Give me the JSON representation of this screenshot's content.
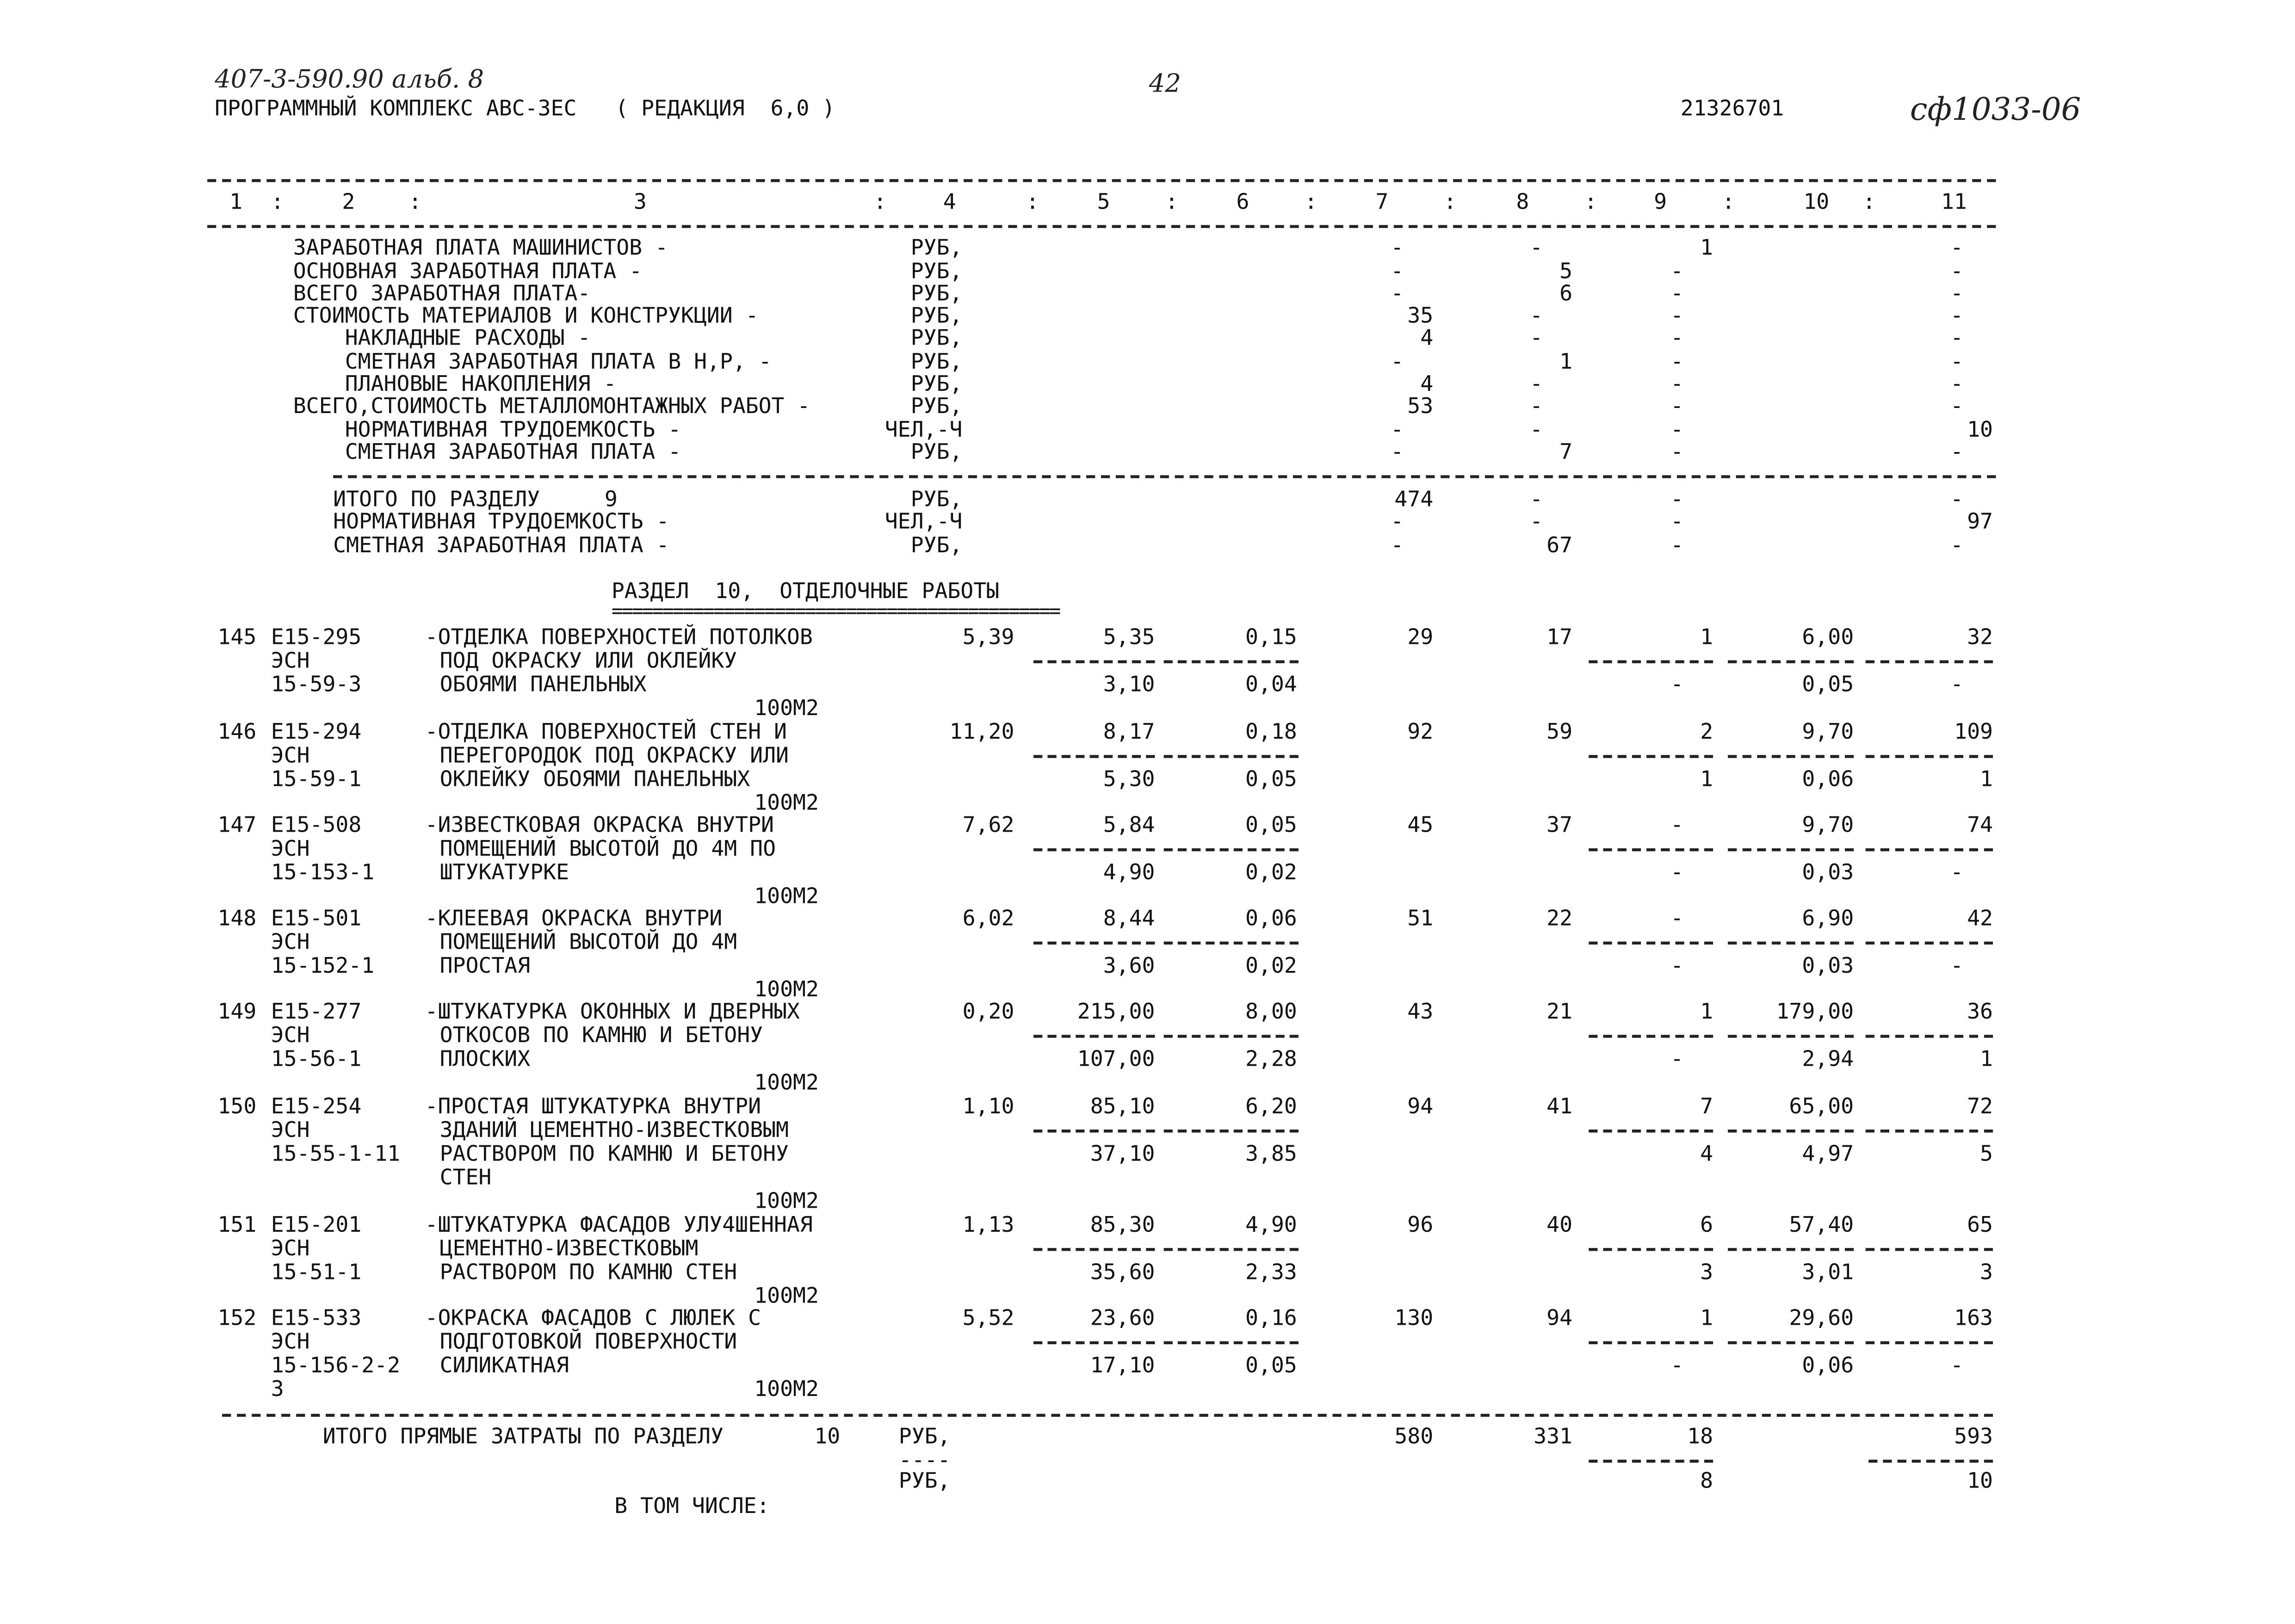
{
  "header": {
    "handwritten_ref": "407-3-590.90 альб. 8",
    "page_number": "42",
    "program": "ПРОГРАММНЫЙ КОМПЛЕКС АВС-3ЕС   ( РЕДАКЦИЯ  6,0 )",
    "code": "21326701",
    "handwritten_code": "сф1033-06"
  },
  "columns": {
    "labels": [
      "1",
      "2",
      "3",
      "4",
      "5",
      "6",
      "7",
      "8",
      "9",
      "10",
      "11"
    ],
    "separator": ":"
  },
  "summary_prev": {
    "rows": [
      {
        "label": "ЗАРАБОТНАЯ ПЛАТА МАШИНИСТОВ -",
        "indent": false,
        "unit": "РУБ,",
        "c7": "-",
        "c8": "-",
        "c9": "1",
        "c11": "-"
      },
      {
        "label": "ОСНОВНАЯ ЗАРАБОТНАЯ ПЛАТА -",
        "indent": false,
        "unit": "РУБ,",
        "c7": "-",
        "c8": "5",
        "c9": "-",
        "c11": "-"
      },
      {
        "label": "ВСЕГО ЗАРАБОТНАЯ ПЛАТА-",
        "indent": false,
        "unit": "РУБ,",
        "c7": "-",
        "c8": "6",
        "c9": "-",
        "c11": "-"
      },
      {
        "label": "СТОИМОСТЬ МАТЕРИАЛОВ И КОНСТРУКЦИИ -",
        "indent": false,
        "unit": "РУБ,",
        "c7": "35",
        "c8": "-",
        "c9": "-",
        "c11": "-"
      },
      {
        "label": "НАКЛАДНЫЕ РАСХОДЫ -",
        "indent": true,
        "unit": "РУБ,",
        "c7": "4",
        "c8": "-",
        "c9": "-",
        "c11": "-"
      },
      {
        "label": "СМЕТНАЯ ЗАРАБОТНАЯ ПЛАТА В Н,Р, -",
        "indent": true,
        "unit": "РУБ,",
        "c7": "-",
        "c8": "1",
        "c9": "-",
        "c11": "-"
      },
      {
        "label": "ПЛАНОВЫЕ НАКОПЛЕНИЯ -",
        "indent": true,
        "unit": "РУБ,",
        "c7": "4",
        "c8": "-",
        "c9": "-",
        "c11": "-"
      },
      {
        "label": "ВСЕГО,СТОИМОСТЬ МЕТАЛЛОМОНТАЖНЫХ РАБОТ -",
        "indent": false,
        "unit": "РУБ,",
        "c7": "53",
        "c8": "-",
        "c9": "-",
        "c11": "-"
      },
      {
        "label": "НОРМАТИВНАЯ ТРУДОЕМКОСТЬ -",
        "indent": true,
        "unit": "ЧЕЛ,-Ч",
        "c7": "-",
        "c8": "-",
        "c9": "-",
        "c11": "10"
      },
      {
        "label": "СМЕТНАЯ ЗАРАБОТНАЯ ПЛАТА -",
        "indent": true,
        "unit": "РУБ,",
        "c7": "-",
        "c8": "7",
        "c9": "-",
        "c11": "-"
      }
    ],
    "totals": [
      {
        "label": "ИТОГО ПО РАЗДЕЛУ     9",
        "unit": "РУБ,",
        "c7": "474",
        "c8": "-",
        "c9": "-",
        "c11": "-"
      },
      {
        "label": "НОРМАТИВНАЯ ТРУДОЕМКОСТЬ -",
        "unit": "ЧЕЛ,-Ч",
        "c7": "-",
        "c8": "-",
        "c9": "-",
        "c11": "97"
      },
      {
        "label": "СМЕТНАЯ ЗАРАБОТНАЯ ПЛАТА -",
        "unit": "РУБ,",
        "c7": "-",
        "c8": "67",
        "c9": "-",
        "c11": "-"
      }
    ]
  },
  "section": {
    "title": "РАЗДЕЛ  10,  ОТДЕЛОЧНЫЕ РАБОТЫ",
    "underline": "============================================",
    "items": [
      {
        "num": "145",
        "code": "Е15-295",
        "esn": "ЭСН",
        "sub": "15-59-3",
        "extra": "",
        "desc": [
          "-ОТДЕЛКА ПОВЕРХНОСТЕЙ ПОТОЛКОВ",
          "ПОД ОКРАСКУ ИЛИ ОКЛЕЙКУ",
          "ОБОЯМИ ПАНЕЛЬНЫХ"
        ],
        "unit": "100М2",
        "c4": "5,39",
        "c5": [
          "5,35",
          "3,10"
        ],
        "c6": [
          "0,15",
          "0,04"
        ],
        "c7": "29",
        "c8": "17",
        "c9": [
          "1",
          "-"
        ],
        "c10": [
          "6,00",
          "0,05"
        ],
        "c11": [
          "32",
          "-"
        ]
      },
      {
        "num": "146",
        "code": "Е15-294",
        "esn": "ЭСН",
        "sub": "15-59-1",
        "extra": "",
        "desc": [
          "-ОТДЕЛКА ПОВЕРХНОСТЕЙ СТЕН И",
          "ПЕРЕГОРОДОК ПОД ОКРАСКУ ИЛИ",
          "ОКЛЕЙКУ ОБОЯМИ ПАНЕЛЬНЫХ"
        ],
        "unit": "100М2",
        "c4": "11,20",
        "c5": [
          "8,17",
          "5,30"
        ],
        "c6": [
          "0,18",
          "0,05"
        ],
        "c7": "92",
        "c8": "59",
        "c9": [
          "2",
          "1"
        ],
        "c10": [
          "9,70",
          "0,06"
        ],
        "c11": [
          "109",
          "1"
        ]
      },
      {
        "num": "147",
        "code": "Е15-508",
        "esn": "ЭСН",
        "sub": "15-153-1",
        "extra": "",
        "desc": [
          "-ИЗВЕСТКОВАЯ ОКРАСКА ВНУТРИ",
          "ПОМЕЩЕНИЙ ВЫСОТОЙ ДО 4М ПО",
          "ШТУКАТУРКЕ"
        ],
        "unit": "100М2",
        "c4": "7,62",
        "c5": [
          "5,84",
          "4,90"
        ],
        "c6": [
          "0,05",
          "0,02"
        ],
        "c7": "45",
        "c8": "37",
        "c9": [
          "-",
          "-"
        ],
        "c10": [
          "9,70",
          "0,03"
        ],
        "c11": [
          "74",
          "-"
        ]
      },
      {
        "num": "148",
        "code": "Е15-501",
        "esn": "ЭСН",
        "sub": "15-152-1",
        "extra": "",
        "desc": [
          "-КЛЕЕВАЯ ОКРАСКА ВНУТРИ",
          "ПОМЕЩЕНИЙ ВЫСОТОЙ ДО 4М",
          "ПРОСТАЯ"
        ],
        "unit": "100М2",
        "c4": "6,02",
        "c5": [
          "8,44",
          "3,60"
        ],
        "c6": [
          "0,06",
          "0,02"
        ],
        "c7": "51",
        "c8": "22",
        "c9": [
          "-",
          "-"
        ],
        "c10": [
          "6,90",
          "0,03"
        ],
        "c11": [
          "42",
          "-"
        ]
      },
      {
        "num": "149",
        "code": "Е15-277",
        "esn": "ЭСН",
        "sub": "15-56-1",
        "extra": "",
        "desc": [
          "-ШТУКАТУРКА ОКОННЫХ И ДВЕРНЫХ",
          "ОТКОСОВ ПО КАМНЮ И БЕТОНУ",
          "ПЛОСКИХ"
        ],
        "unit": "100М2",
        "c4": "0,20",
        "c5": [
          "215,00",
          "107,00"
        ],
        "c6": [
          "8,00",
          "2,28"
        ],
        "c7": "43",
        "c8": "21",
        "c9": [
          "1",
          "-"
        ],
        "c10": [
          "179,00",
          "2,94"
        ],
        "c11": [
          "36",
          "1"
        ]
      },
      {
        "num": "150",
        "code": "Е15-254",
        "esn": "ЭСН",
        "sub": "15-55-1-11",
        "extra": "",
        "desc": [
          "-ПРОСТАЯ ШТУКАТУРКА ВНУТРИ",
          "ЗДАНИЙ ЦЕМЕНТНО-ИЗВЕСТКОВЫМ",
          "РАСТВОРОМ ПО КАМНЮ И БЕТОНУ",
          "СТЕН"
        ],
        "unit": "100М2",
        "c4": "1,10",
        "c5": [
          "85,10",
          "37,10"
        ],
        "c6": [
          "6,20",
          "3,85"
        ],
        "c7": "94",
        "c8": "41",
        "c9": [
          "7",
          "4"
        ],
        "c10": [
          "65,00",
          "4,97"
        ],
        "c11": [
          "72",
          "5"
        ]
      },
      {
        "num": "151",
        "code": "Е15-201",
        "esn": "ЭСН",
        "sub": "15-51-1",
        "extra": "",
        "desc": [
          "-ШТУКАТУРКА ФАСАДОВ УЛУ4ШЕННАЯ",
          "ЦЕМЕНТНО-ИЗВЕСТКОВЫМ",
          "РАСТВОРОМ ПО КАМНЮ СТЕН"
        ],
        "unit": "100М2",
        "c4": "1,13",
        "c5": [
          "85,30",
          "35,60"
        ],
        "c6": [
          "4,90",
          "2,33"
        ],
        "c7": "96",
        "c8": "40",
        "c9": [
          "6",
          "3"
        ],
        "c10": [
          "57,40",
          "3,01"
        ],
        "c11": [
          "65",
          "3"
        ]
      },
      {
        "num": "152",
        "code": "Е15-533",
        "esn": "ЭСН",
        "sub": "15-156-2-2",
        "extra": "3",
        "desc": [
          "-ОКРАСКА ФАСАДОВ С ЛЮЛЕК С",
          "ПОДГОТОВКОЙ ПОВЕРХНОСТИ",
          "СИЛИКАТНАЯ"
        ],
        "unit": "100М2",
        "c4": "5,52",
        "c5": [
          "23,60",
          "17,10"
        ],
        "c6": [
          "0,16",
          "0,05"
        ],
        "c7": "130",
        "c8": "94",
        "c9": [
          "1",
          "-"
        ],
        "c10": [
          "29,60",
          "0,06"
        ],
        "c11": [
          "163",
          "-"
        ]
      }
    ],
    "total": {
      "label": "ИТОГО ПРЯМЫЕ ЗАТРАТЫ ПО РАЗДЕЛУ",
      "section_no": "10",
      "unit": "РУБ,",
      "unit_sep": "----",
      "unit2": "РУБ,",
      "c7": "580",
      "c8": "331",
      "c9": [
        "18",
        "8"
      ],
      "c11": [
        "593",
        "10"
      ]
    },
    "note": "В ТОМ ЧИСЛЕ:"
  }
}
